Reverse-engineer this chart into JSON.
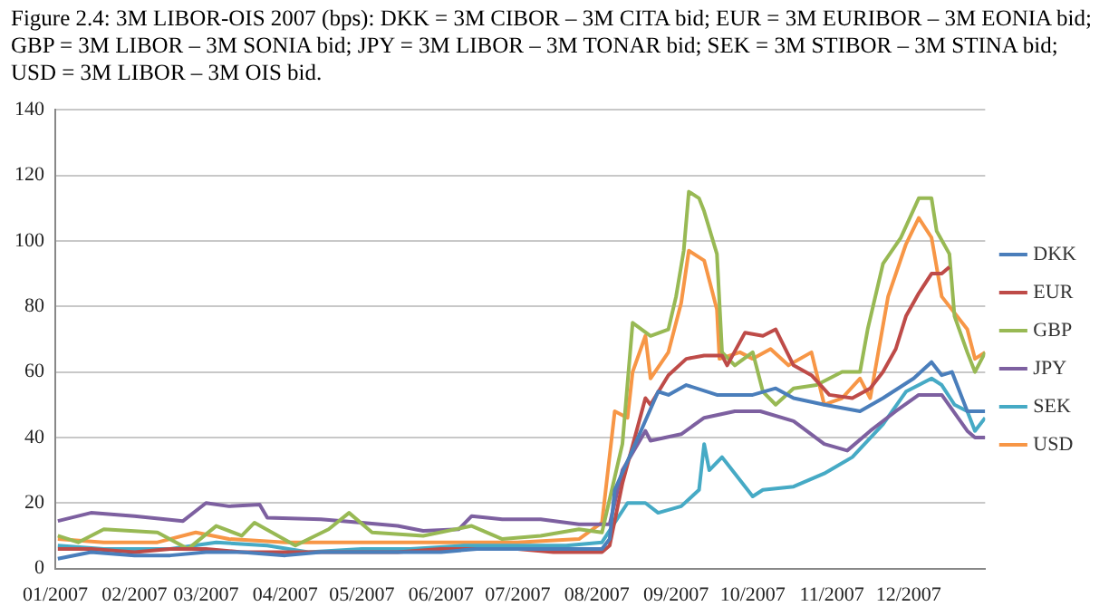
{
  "chart_data": {
    "type": "line",
    "title": "Figure 2.4: 3M LIBOR-OIS 2007 (bps): DKK = 3M CIBOR – 3M CITA bid; EUR = 3M EURIBOR – 3M EONIA bid; GBP = 3M LIBOR – 3M SONIA bid; JPY = 3M LIBOR – 3M TONAR bid; SEK = 3M STIBOR – 3M STINA bid; USD = 3M LIBOR – 3M OIS bid.",
    "xlim": [
      "2007-01-01",
      "2007-12-31"
    ],
    "xticks": [
      {
        "value": "2007-01-01",
        "label": "01/2007"
      },
      {
        "value": "2007-02-01",
        "label": "02/2007"
      },
      {
        "value": "2007-03-01",
        "label": "03/2007"
      },
      {
        "value": "2007-04-01",
        "label": "04/2007"
      },
      {
        "value": "2007-05-01",
        "label": "05/2007"
      },
      {
        "value": "2007-06-01",
        "label": "06/2007"
      },
      {
        "value": "2007-07-01",
        "label": "07/2007"
      },
      {
        "value": "2007-08-01",
        "label": "08/2007"
      },
      {
        "value": "2007-09-01",
        "label": "09/2007"
      },
      {
        "value": "2007-10-01",
        "label": "10/2007"
      },
      {
        "value": "2007-11-01",
        "label": "11/2007"
      },
      {
        "value": "2007-12-01",
        "label": "12/2007"
      }
    ],
    "ylim": [
      0,
      140
    ],
    "yticks": [
      0,
      20,
      40,
      60,
      80,
      100,
      120,
      140
    ],
    "grid": "y",
    "legend": "right",
    "series": [
      {
        "name": "DKK",
        "color": "#4a7ebb",
        "x": [
          "2007-01-02",
          "2007-01-15",
          "2007-02-01",
          "2007-02-15",
          "2007-03-01",
          "2007-03-15",
          "2007-04-01",
          "2007-04-15",
          "2007-05-01",
          "2007-05-15",
          "2007-06-01",
          "2007-06-15",
          "2007-07-01",
          "2007-07-15",
          "2007-08-03",
          "2007-08-06",
          "2007-08-08",
          "2007-08-16",
          "2007-08-25",
          "2007-08-29",
          "2007-09-05",
          "2007-09-17",
          "2007-10-01",
          "2007-10-10",
          "2007-10-17",
          "2007-10-29",
          "2007-11-12",
          "2007-11-21",
          "2007-12-03",
          "2007-12-10",
          "2007-12-14",
          "2007-12-18",
          "2007-12-24",
          "2007-12-31"
        ],
        "values": [
          3,
          5,
          4,
          4,
          5,
          5,
          4,
          5,
          5,
          5,
          5,
          6,
          6,
          6,
          6,
          9,
          24,
          38,
          54,
          53,
          56,
          53,
          53,
          55,
          52,
          50,
          48,
          52,
          58,
          63,
          59,
          60,
          48,
          48
        ]
      },
      {
        "name": "EUR",
        "color": "#be4b48",
        "x": [
          "2007-01-02",
          "2007-01-15",
          "2007-02-01",
          "2007-02-15",
          "2007-03-01",
          "2007-03-15",
          "2007-04-01",
          "2007-04-15",
          "2007-05-01",
          "2007-05-15",
          "2007-06-01",
          "2007-06-15",
          "2007-07-01",
          "2007-07-15",
          "2007-08-03",
          "2007-08-06",
          "2007-08-11",
          "2007-08-20",
          "2007-08-22",
          "2007-08-29",
          "2007-09-05",
          "2007-09-12",
          "2007-09-19",
          "2007-09-21",
          "2007-09-28",
          "2007-10-05",
          "2007-10-10",
          "2007-10-17",
          "2007-10-24",
          "2007-10-31",
          "2007-11-09",
          "2007-11-16",
          "2007-11-21",
          "2007-11-26",
          "2007-11-30",
          "2007-12-05",
          "2007-12-10",
          "2007-12-14",
          "2007-12-17"
        ],
        "values": [
          6,
          6,
          5,
          6,
          6,
          5,
          5,
          5,
          5,
          5,
          6,
          6,
          6,
          5,
          5,
          7,
          26,
          52,
          50,
          59,
          64,
          65,
          65,
          62,
          72,
          71,
          73,
          62,
          59,
          53,
          52,
          55,
          60,
          67,
          77,
          84,
          90,
          90,
          92
        ]
      },
      {
        "name": "GBP",
        "color": "#98b954",
        "x": [
          "2007-01-02",
          "2007-01-10",
          "2007-01-20",
          "2007-02-10",
          "2007-02-22",
          "2007-03-05",
          "2007-03-15",
          "2007-03-20",
          "2007-04-05",
          "2007-04-18",
          "2007-04-26",
          "2007-05-05",
          "2007-05-25",
          "2007-06-13",
          "2007-06-25",
          "2007-07-10",
          "2007-07-25",
          "2007-08-03",
          "2007-08-11",
          "2007-08-15",
          "2007-08-22",
          "2007-08-29",
          "2007-09-01",
          "2007-09-04",
          "2007-09-06",
          "2007-09-10",
          "2007-09-12",
          "2007-09-17",
          "2007-09-19",
          "2007-09-24",
          "2007-10-01",
          "2007-10-05",
          "2007-10-10",
          "2007-10-17",
          "2007-10-26",
          "2007-11-05",
          "2007-11-12",
          "2007-11-15",
          "2007-11-21",
          "2007-11-28",
          "2007-12-05",
          "2007-12-10",
          "2007-12-12",
          "2007-12-17",
          "2007-12-19",
          "2007-12-24",
          "2007-12-27",
          "2007-12-31"
        ],
        "values": [
          10,
          8,
          12,
          11,
          6,
          13,
          10,
          14,
          7,
          12,
          17,
          11,
          10,
          13,
          9,
          10,
          12,
          11,
          38,
          75,
          71,
          73,
          83,
          97,
          115,
          113,
          109,
          96,
          66,
          62,
          66,
          54,
          50,
          55,
          56,
          60,
          60,
          73,
          93,
          101,
          113,
          113,
          103,
          96,
          77,
          66,
          60,
          66
        ]
      },
      {
        "name": "JPY",
        "color": "#7d60a0",
        "x": [
          "2007-01-02",
          "2007-01-15",
          "2007-02-01",
          "2007-02-20",
          "2007-03-01",
          "2007-03-10",
          "2007-03-22",
          "2007-03-25",
          "2007-04-15",
          "2007-05-01",
          "2007-05-15",
          "2007-05-25",
          "2007-06-08",
          "2007-06-13",
          "2007-06-25",
          "2007-07-10",
          "2007-07-25",
          "2007-08-06",
          "2007-08-11",
          "2007-08-20",
          "2007-08-22",
          "2007-09-03",
          "2007-09-12",
          "2007-09-24",
          "2007-10-04",
          "2007-10-17",
          "2007-10-29",
          "2007-11-07",
          "2007-11-16",
          "2007-11-26",
          "2007-12-05",
          "2007-12-14",
          "2007-12-24",
          "2007-12-27",
          "2007-12-31"
        ],
        "values": [
          14.5,
          17,
          16,
          14.5,
          20,
          19,
          19.5,
          15.5,
          15,
          14,
          13,
          11.5,
          12,
          16,
          15,
          15,
          13.5,
          13.5,
          30,
          42,
          39,
          41,
          46,
          48,
          48,
          45,
          38,
          36,
          42,
          48,
          53,
          53,
          42,
          40,
          40
        ]
      },
      {
        "name": "SEK",
        "color": "#46aac5",
        "x": [
          "2007-01-02",
          "2007-01-20",
          "2007-02-15",
          "2007-03-05",
          "2007-03-25",
          "2007-04-10",
          "2007-05-01",
          "2007-05-20",
          "2007-06-10",
          "2007-07-01",
          "2007-07-20",
          "2007-08-03",
          "2007-08-13",
          "2007-08-20",
          "2007-08-25",
          "2007-09-03",
          "2007-09-10",
          "2007-09-12",
          "2007-09-14",
          "2007-09-19",
          "2007-10-01",
          "2007-10-05",
          "2007-10-17",
          "2007-10-29",
          "2007-11-09",
          "2007-11-21",
          "2007-11-30",
          "2007-12-10",
          "2007-12-14",
          "2007-12-19",
          "2007-12-24",
          "2007-12-27",
          "2007-12-31"
        ],
        "values": [
          7,
          6,
          6,
          8,
          7,
          5,
          6,
          6,
          7,
          7,
          7,
          8,
          20,
          20,
          17,
          19,
          24,
          38,
          30,
          34,
          22,
          24,
          25,
          29,
          34,
          44,
          54,
          58,
          56,
          50,
          48,
          42,
          46
        ]
      },
      {
        "name": "USD",
        "color": "#f79646",
        "x": [
          "2007-01-02",
          "2007-01-20",
          "2007-02-10",
          "2007-02-25",
          "2007-03-10",
          "2007-04-01",
          "2007-05-01",
          "2007-06-01",
          "2007-07-01",
          "2007-07-25",
          "2007-08-03",
          "2007-08-08",
          "2007-08-13",
          "2007-08-15",
          "2007-08-20",
          "2007-08-22",
          "2007-08-29",
          "2007-09-03",
          "2007-09-06",
          "2007-09-12",
          "2007-09-17",
          "2007-09-18",
          "2007-09-26",
          "2007-10-01",
          "2007-10-08",
          "2007-10-15",
          "2007-10-24",
          "2007-10-29",
          "2007-11-05",
          "2007-11-12",
          "2007-11-16",
          "2007-11-23",
          "2007-11-30",
          "2007-12-05",
          "2007-12-10",
          "2007-12-14",
          "2007-12-24",
          "2007-12-27",
          "2007-12-31"
        ],
        "values": [
          9,
          8,
          8,
          11,
          9,
          8,
          8,
          8,
          8,
          9,
          14,
          48,
          46,
          60,
          71,
          58,
          66,
          81,
          97,
          94,
          79,
          64,
          66,
          64,
          67,
          62,
          66,
          50,
          52,
          58,
          52,
          83,
          99,
          107,
          101,
          83,
          73,
          64,
          66
        ]
      }
    ]
  }
}
